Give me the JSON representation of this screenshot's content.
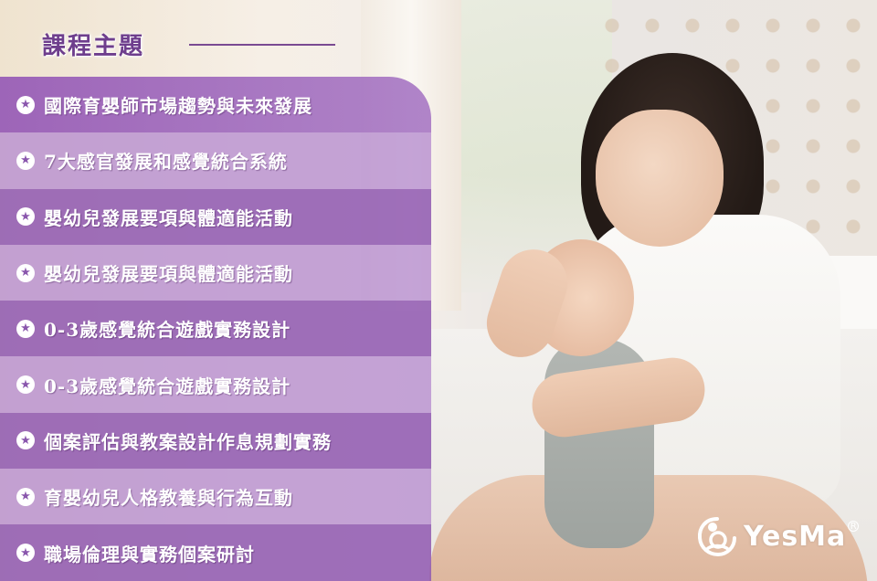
{
  "header": {
    "title": "課程主題"
  },
  "topics": [
    "國際育嬰師市場趨勢與未來發展",
    "7大感官發展和感覺統合系統",
    "嬰幼兒發展要項與體適能活動",
    "嬰幼兒發展要項與體適能活動",
    "0-3歲感覺統合遊戲實務設計",
    "0-3歲感覺統合遊戲實務設計",
    "個案評估與教案設計作息規劃實務",
    "育嬰幼兒人格教養與行為互動",
    "職場倫理與實務個案研討"
  ],
  "icons": {
    "bullet": "star-circle-icon",
    "logo": "mother-baby-logo-icon"
  },
  "logo": {
    "text": "YesMa",
    "registered": "R"
  },
  "colors": {
    "accent": "#6e3e8d",
    "row_dark": "#925cb2",
    "row_light": "#ba92d0"
  }
}
